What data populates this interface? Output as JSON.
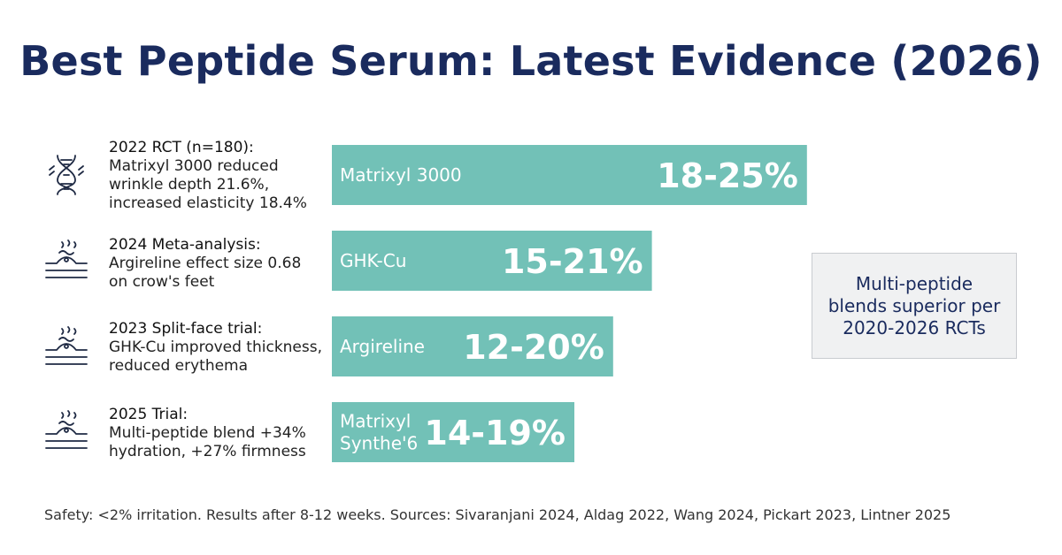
{
  "title": "Best Peptide Serum: Latest Evidence (2026)",
  "studies": [
    {
      "heading": "2022 RCT (n=180):",
      "text": "Matrixyl 3000 reduced\nwrinkle depth 21.6%,\nincreased elasticity 18.4%",
      "icon": "dna-icon"
    },
    {
      "heading": "2024 Meta-analysis:",
      "text": "Argireline effect size 0.68\non crow's feet",
      "icon": "skin-layers-icon"
    },
    {
      "heading": "2023 Split-face trial:",
      "text": "GHK-Cu improved thickness,\nreduced erythema",
      "icon": "skin-layers-icon"
    },
    {
      "heading": "2025 Trial:",
      "text": "Multi-peptide blend +34%\nhydration, +27% firmness",
      "icon": "skin-layers-icon"
    }
  ],
  "chart_data": {
    "type": "bar",
    "orientation": "horizontal",
    "categories": [
      "Matrixyl 3000",
      "GHK-Cu",
      "Argireline",
      "Matrixyl Synthe'6"
    ],
    "category_lines": [
      [
        "Matrixyl 3000"
      ],
      [
        "GHK-Cu"
      ],
      [
        "Argireline"
      ],
      [
        "Matrixyl",
        "Synthe'6"
      ]
    ],
    "range_labels": [
      "18-25%",
      "15-21%",
      "12-20%",
      "14-19%"
    ],
    "ranges": [
      [
        18,
        25
      ],
      [
        15,
        21
      ],
      [
        12,
        20
      ],
      [
        14,
        19
      ]
    ],
    "bar_color": "#72c1b7",
    "label_color": "#ffffff",
    "grid": false
  },
  "callout": "Multi-peptide\nblends superior per\n2020-2026 RCTs",
  "footer": "Safety: <2% irritation. Results after 8-12 weeks. Sources: Sivaranjani 2024, Aldag 2022, Wang 2024, Pickart 2023, Lintner 2025"
}
